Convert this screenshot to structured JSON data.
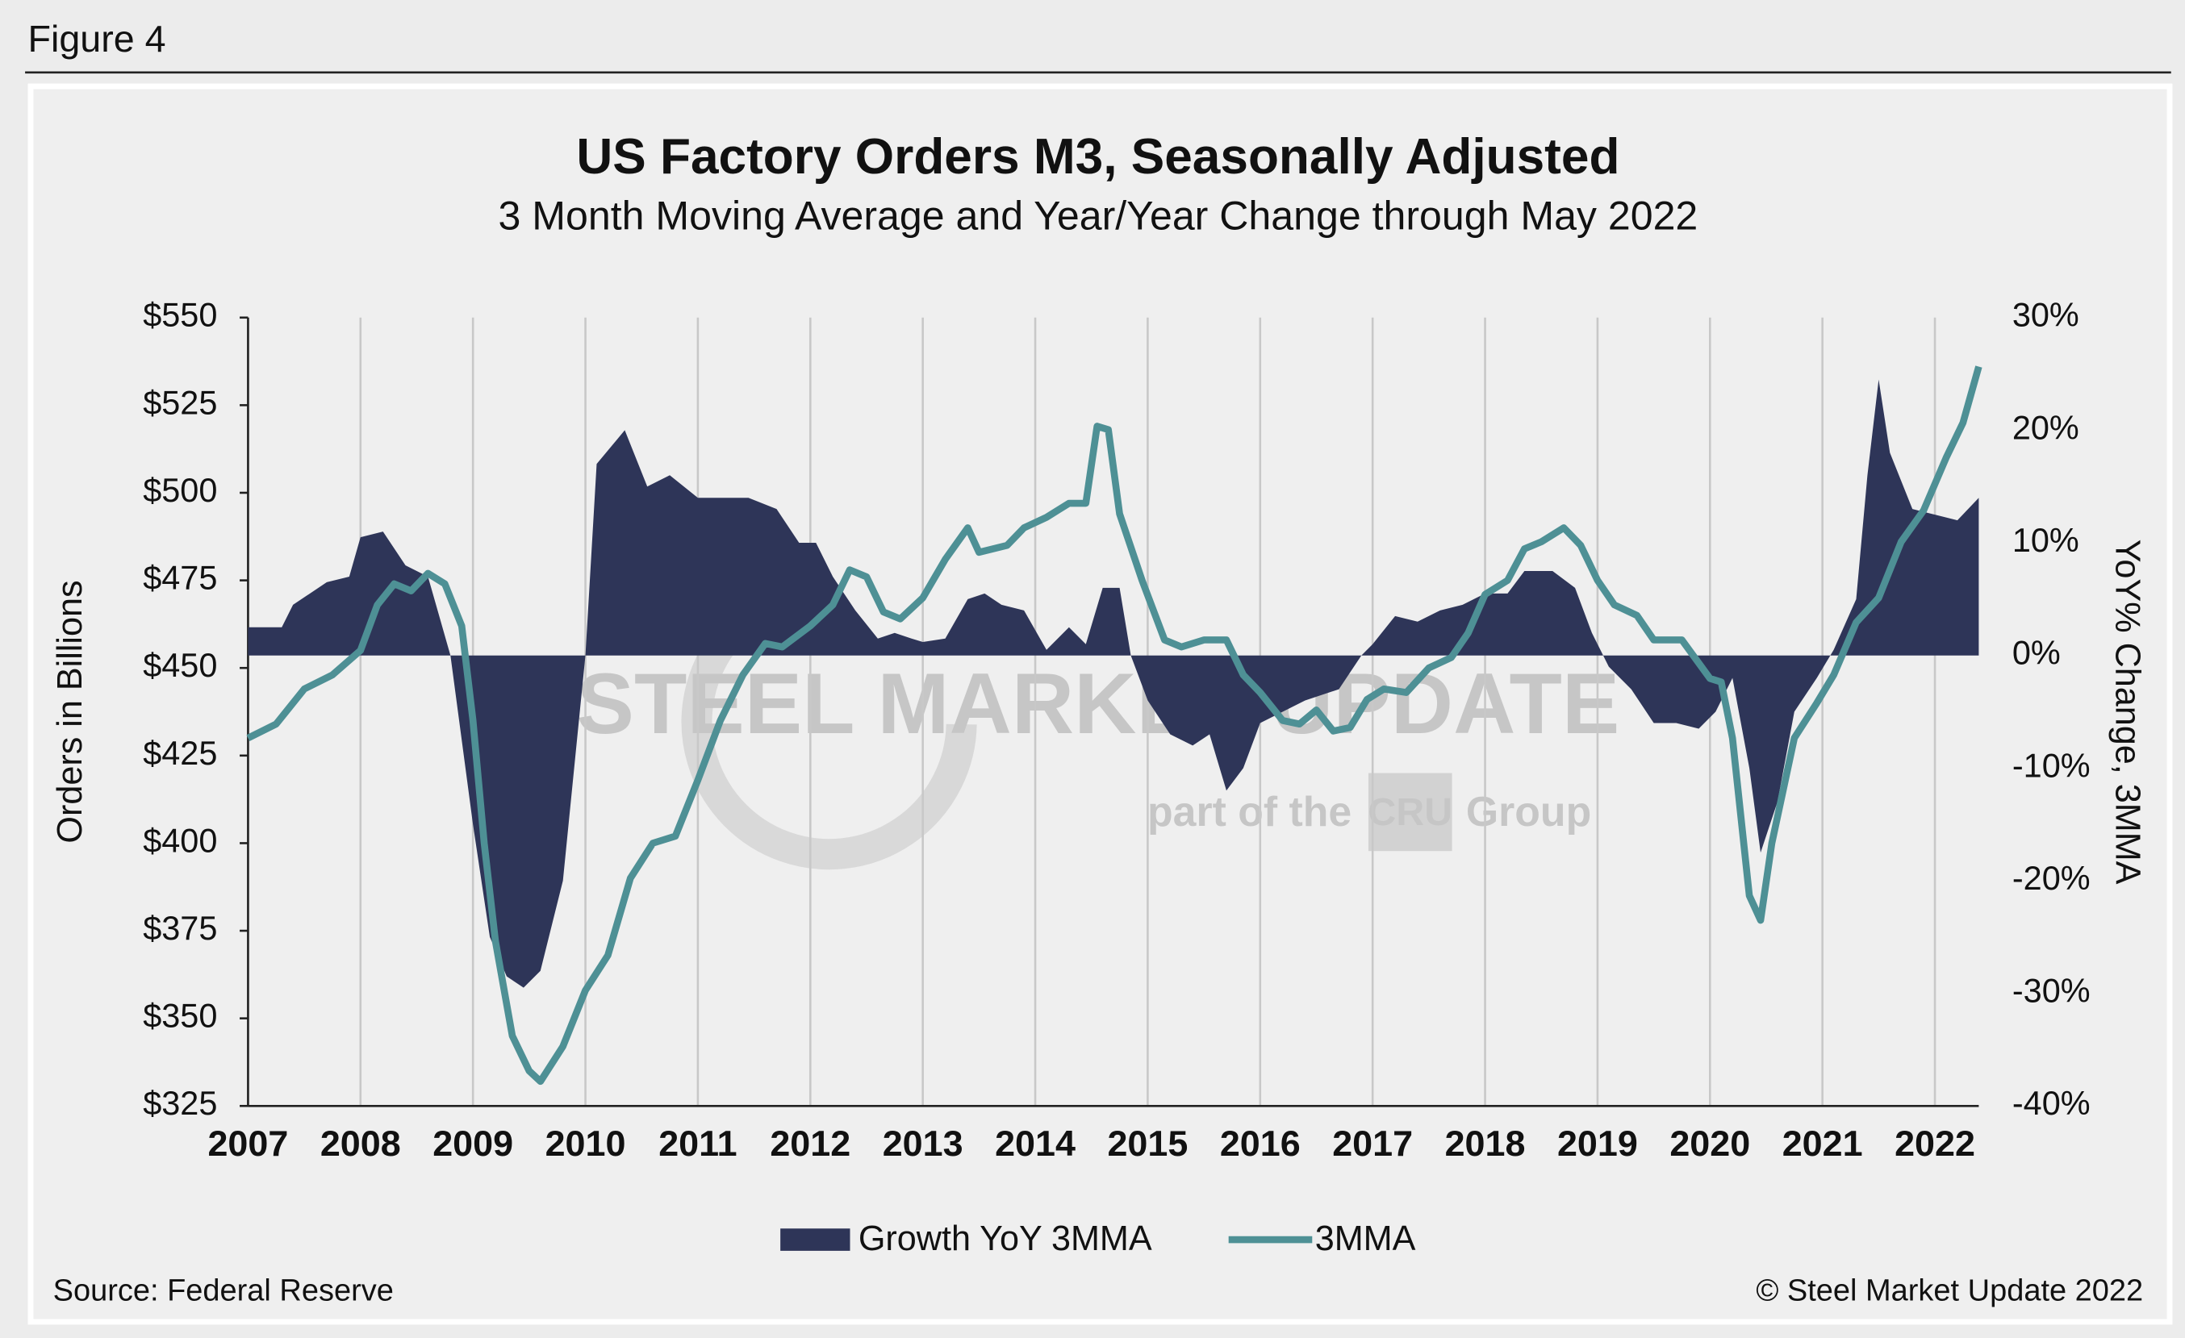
{
  "figure_label": "Figure 4",
  "source": "Source: Federal Reserve",
  "copyright": "© Steel Market Update 2022",
  "watermark": {
    "brand": "STEEL MARKET UPDATE",
    "tagline_left": "part of the",
    "tagline_logo": "CRU",
    "tagline_right": "Group"
  },
  "chart_data": {
    "type": "area-line",
    "title": "US Factory Orders M3, Seasonally Adjusted",
    "subtitle": "3 Month Moving Average and Year/Year Change through May 2022",
    "ylabel": "Orders in Billions",
    "y2label": "YoY% Change, 3MMA",
    "xlim": [
      2007,
      2022.39
    ],
    "xticks": [
      2007,
      2008,
      2009,
      2010,
      2011,
      2012,
      2013,
      2014,
      2015,
      2016,
      2017,
      2018,
      2019,
      2020,
      2021,
      2022
    ],
    "grid": "x",
    "ylim": [
      325,
      550
    ],
    "yticks": [
      {
        "value": 325,
        "label": "$325"
      },
      {
        "value": 350,
        "label": "$350"
      },
      {
        "value": 375,
        "label": "$375"
      },
      {
        "value": 400,
        "label": "$400"
      },
      {
        "value": 425,
        "label": "$425"
      },
      {
        "value": 450,
        "label": "$450"
      },
      {
        "value": 475,
        "label": "$475"
      },
      {
        "value": 500,
        "label": "$500"
      },
      {
        "value": 525,
        "label": "$525"
      },
      {
        "value": 550,
        "label": "$550"
      }
    ],
    "y2lim": [
      -40,
      30
    ],
    "y2ticks": [
      {
        "value": -40,
        "label": "-40%"
      },
      {
        "value": -30,
        "label": "-30%"
      },
      {
        "value": -20,
        "label": "-20%"
      },
      {
        "value": -10,
        "label": "-10%"
      },
      {
        "value": 0,
        "label": "0%"
      },
      {
        "value": 10,
        "label": "10%"
      },
      {
        "value": 20,
        "label": "20%"
      },
      {
        "value": 30,
        "label": "30%"
      }
    ],
    "legend": "bottom",
    "series": [
      {
        "name": "Growth YoY 3MMA",
        "type": "area",
        "axis": "y2",
        "color": "#2e3558",
        "x": [
          2007.0,
          2007.3,
          2007.4,
          2007.7,
          2007.9,
          2008.0,
          2008.2,
          2008.4,
          2008.6,
          2008.8,
          2009.0,
          2009.15,
          2009.3,
          2009.45,
          2009.6,
          2009.8,
          2010.0,
          2010.1,
          2010.35,
          2010.55,
          2010.75,
          2011.0,
          2011.25,
          2011.45,
          2011.7,
          2011.9,
          2012.05,
          2012.2,
          2012.4,
          2012.6,
          2012.75,
          2012.9,
          2013.0,
          2013.2,
          2013.4,
          2013.55,
          2013.7,
          2013.9,
          2014.1,
          2014.3,
          2014.45,
          2014.6,
          2014.75,
          2014.85,
          2015.0,
          2015.2,
          2015.4,
          2015.55,
          2015.7,
          2015.85,
          2016.0,
          2016.2,
          2016.4,
          2016.7,
          2016.9,
          2017.0,
          2017.2,
          2017.4,
          2017.6,
          2017.8,
          2018.0,
          2018.2,
          2018.35,
          2018.6,
          2018.8,
          2018.95,
          2019.1,
          2019.3,
          2019.5,
          2019.7,
          2019.9,
          2020.05,
          2020.2,
          2020.35,
          2020.45,
          2020.6,
          2020.75,
          2020.95,
          2021.1,
          2021.3,
          2021.4,
          2021.5,
          2021.6,
          2021.8,
          2022.0,
          2022.2,
          2022.39
        ],
        "values": [
          2.5,
          2.5,
          4.5,
          6.5,
          7,
          10.5,
          11,
          8,
          7,
          0,
          -15,
          -25,
          -28.5,
          -29.5,
          -28,
          -20,
          0,
          17,
          20,
          15,
          16,
          14,
          14,
          14,
          13,
          10,
          10,
          7,
          4,
          1.5,
          2,
          1.5,
          1.2,
          1.5,
          5,
          5.5,
          4.5,
          4,
          0.5,
          2.5,
          1,
          6,
          6,
          0,
          -4,
          -7,
          -8,
          -7,
          -12,
          -10,
          -6,
          -5,
          -4,
          -3,
          0,
          1,
          3.5,
          3,
          4,
          4.5,
          5.5,
          5.5,
          7.5,
          7.5,
          6,
          2,
          -1,
          -3,
          -6,
          -6,
          -6.5,
          -5,
          -2,
          -10,
          -17.5,
          -13,
          -5,
          -2,
          0.5,
          5,
          16,
          24.5,
          18,
          13,
          12.5,
          12,
          14
        ]
      },
      {
        "name": "3MMA",
        "type": "line",
        "axis": "y",
        "color": "#4e9095",
        "x": [
          2007.0,
          2007.25,
          2007.5,
          2007.75,
          2008.0,
          2008.15,
          2008.3,
          2008.45,
          2008.6,
          2008.75,
          2008.9,
          2009.0,
          2009.1,
          2009.2,
          2009.35,
          2009.5,
          2009.6,
          2009.8,
          2010.0,
          2010.2,
          2010.4,
          2010.6,
          2010.8,
          2011.0,
          2011.2,
          2011.4,
          2011.6,
          2011.75,
          2012.0,
          2012.2,
          2012.35,
          2012.5,
          2012.65,
          2012.8,
          2013.0,
          2013.2,
          2013.4,
          2013.5,
          2013.75,
          2013.9,
          2014.1,
          2014.3,
          2014.45,
          2014.55,
          2014.65,
          2014.75,
          2014.95,
          2015.15,
          2015.3,
          2015.5,
          2015.7,
          2015.85,
          2016.0,
          2016.2,
          2016.35,
          2016.5,
          2016.65,
          2016.8,
          2016.95,
          2017.1,
          2017.3,
          2017.5,
          2017.7,
          2017.85,
          2018.0,
          2018.2,
          2018.35,
          2018.5,
          2018.7,
          2018.85,
          2019.0,
          2019.15,
          2019.35,
          2019.5,
          2019.75,
          2020.0,
          2020.1,
          2020.2,
          2020.35,
          2020.45,
          2020.55,
          2020.75,
          2020.95,
          2021.1,
          2021.3,
          2021.5,
          2021.7,
          2021.9,
          2022.1,
          2022.25,
          2022.39
        ],
        "values": [
          430,
          434,
          444,
          448,
          455,
          468,
          474,
          472,
          477,
          474,
          462,
          435,
          400,
          372,
          345,
          335,
          332,
          342,
          358,
          368,
          390,
          400,
          402,
          418,
          435,
          448,
          457,
          456,
          462,
          468,
          478,
          476,
          466,
          464,
          470,
          481,
          490,
          483,
          485,
          490,
          493,
          497,
          497,
          519,
          518,
          494,
          475,
          458,
          456,
          458,
          458,
          448,
          443,
          435,
          434,
          438,
          432,
          433,
          441,
          444,
          443,
          450,
          453,
          460,
          471,
          475,
          484,
          486,
          490,
          485,
          475,
          468,
          465,
          458,
          458,
          447,
          446,
          430,
          385,
          378,
          400,
          430,
          440,
          448,
          463,
          470,
          486,
          495,
          510,
          520,
          536
        ]
      }
    ]
  }
}
